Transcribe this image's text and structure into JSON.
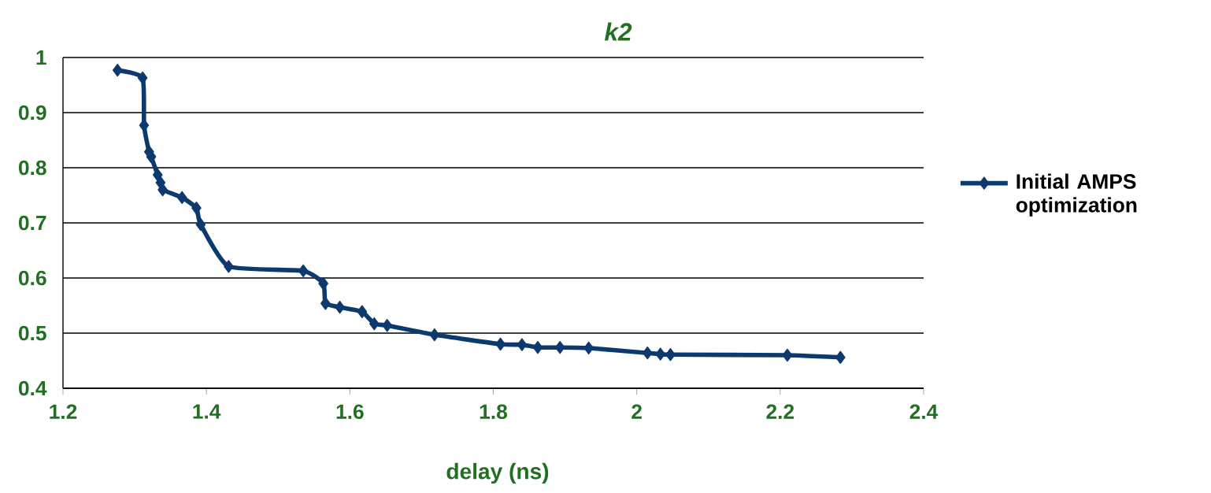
{
  "chart_data": {
    "type": "line",
    "title": "k2",
    "xlabel": "delay (ns)",
    "series": [
      {
        "name": "Initial AMPS optimization",
        "color": "#0d3a6e",
        "x": [
          1.276,
          1.311,
          1.313,
          1.32,
          1.323,
          1.332,
          1.336,
          1.339,
          1.366,
          1.386,
          1.392,
          1.431,
          1.535,
          1.563,
          1.566,
          1.586,
          1.617,
          1.634,
          1.652,
          1.718,
          1.81,
          1.84,
          1.862,
          1.893,
          1.933,
          2.015,
          2.033,
          2.047,
          2.21,
          2.284
        ],
        "values": [
          0.977,
          0.963,
          0.877,
          0.829,
          0.82,
          0.787,
          0.773,
          0.76,
          0.746,
          0.727,
          0.697,
          0.621,
          0.613,
          0.59,
          0.554,
          0.547,
          0.539,
          0.517,
          0.514,
          0.497,
          0.48,
          0.479,
          0.474,
          0.474,
          0.473,
          0.464,
          0.462,
          0.461,
          0.46,
          0.456
        ]
      }
    ],
    "xlim": [
      1.2,
      2.4
    ],
    "ylim": [
      0.4,
      1
    ],
    "xticks": [
      1.2,
      1.4,
      1.6,
      1.8,
      2,
      2.2,
      2.4
    ],
    "yticks": [
      0.4,
      0.5,
      0.6,
      0.7,
      0.8,
      0.9,
      1
    ],
    "grid": "y",
    "legend": "right",
    "marker": "diamond",
    "line_style": "solid"
  }
}
